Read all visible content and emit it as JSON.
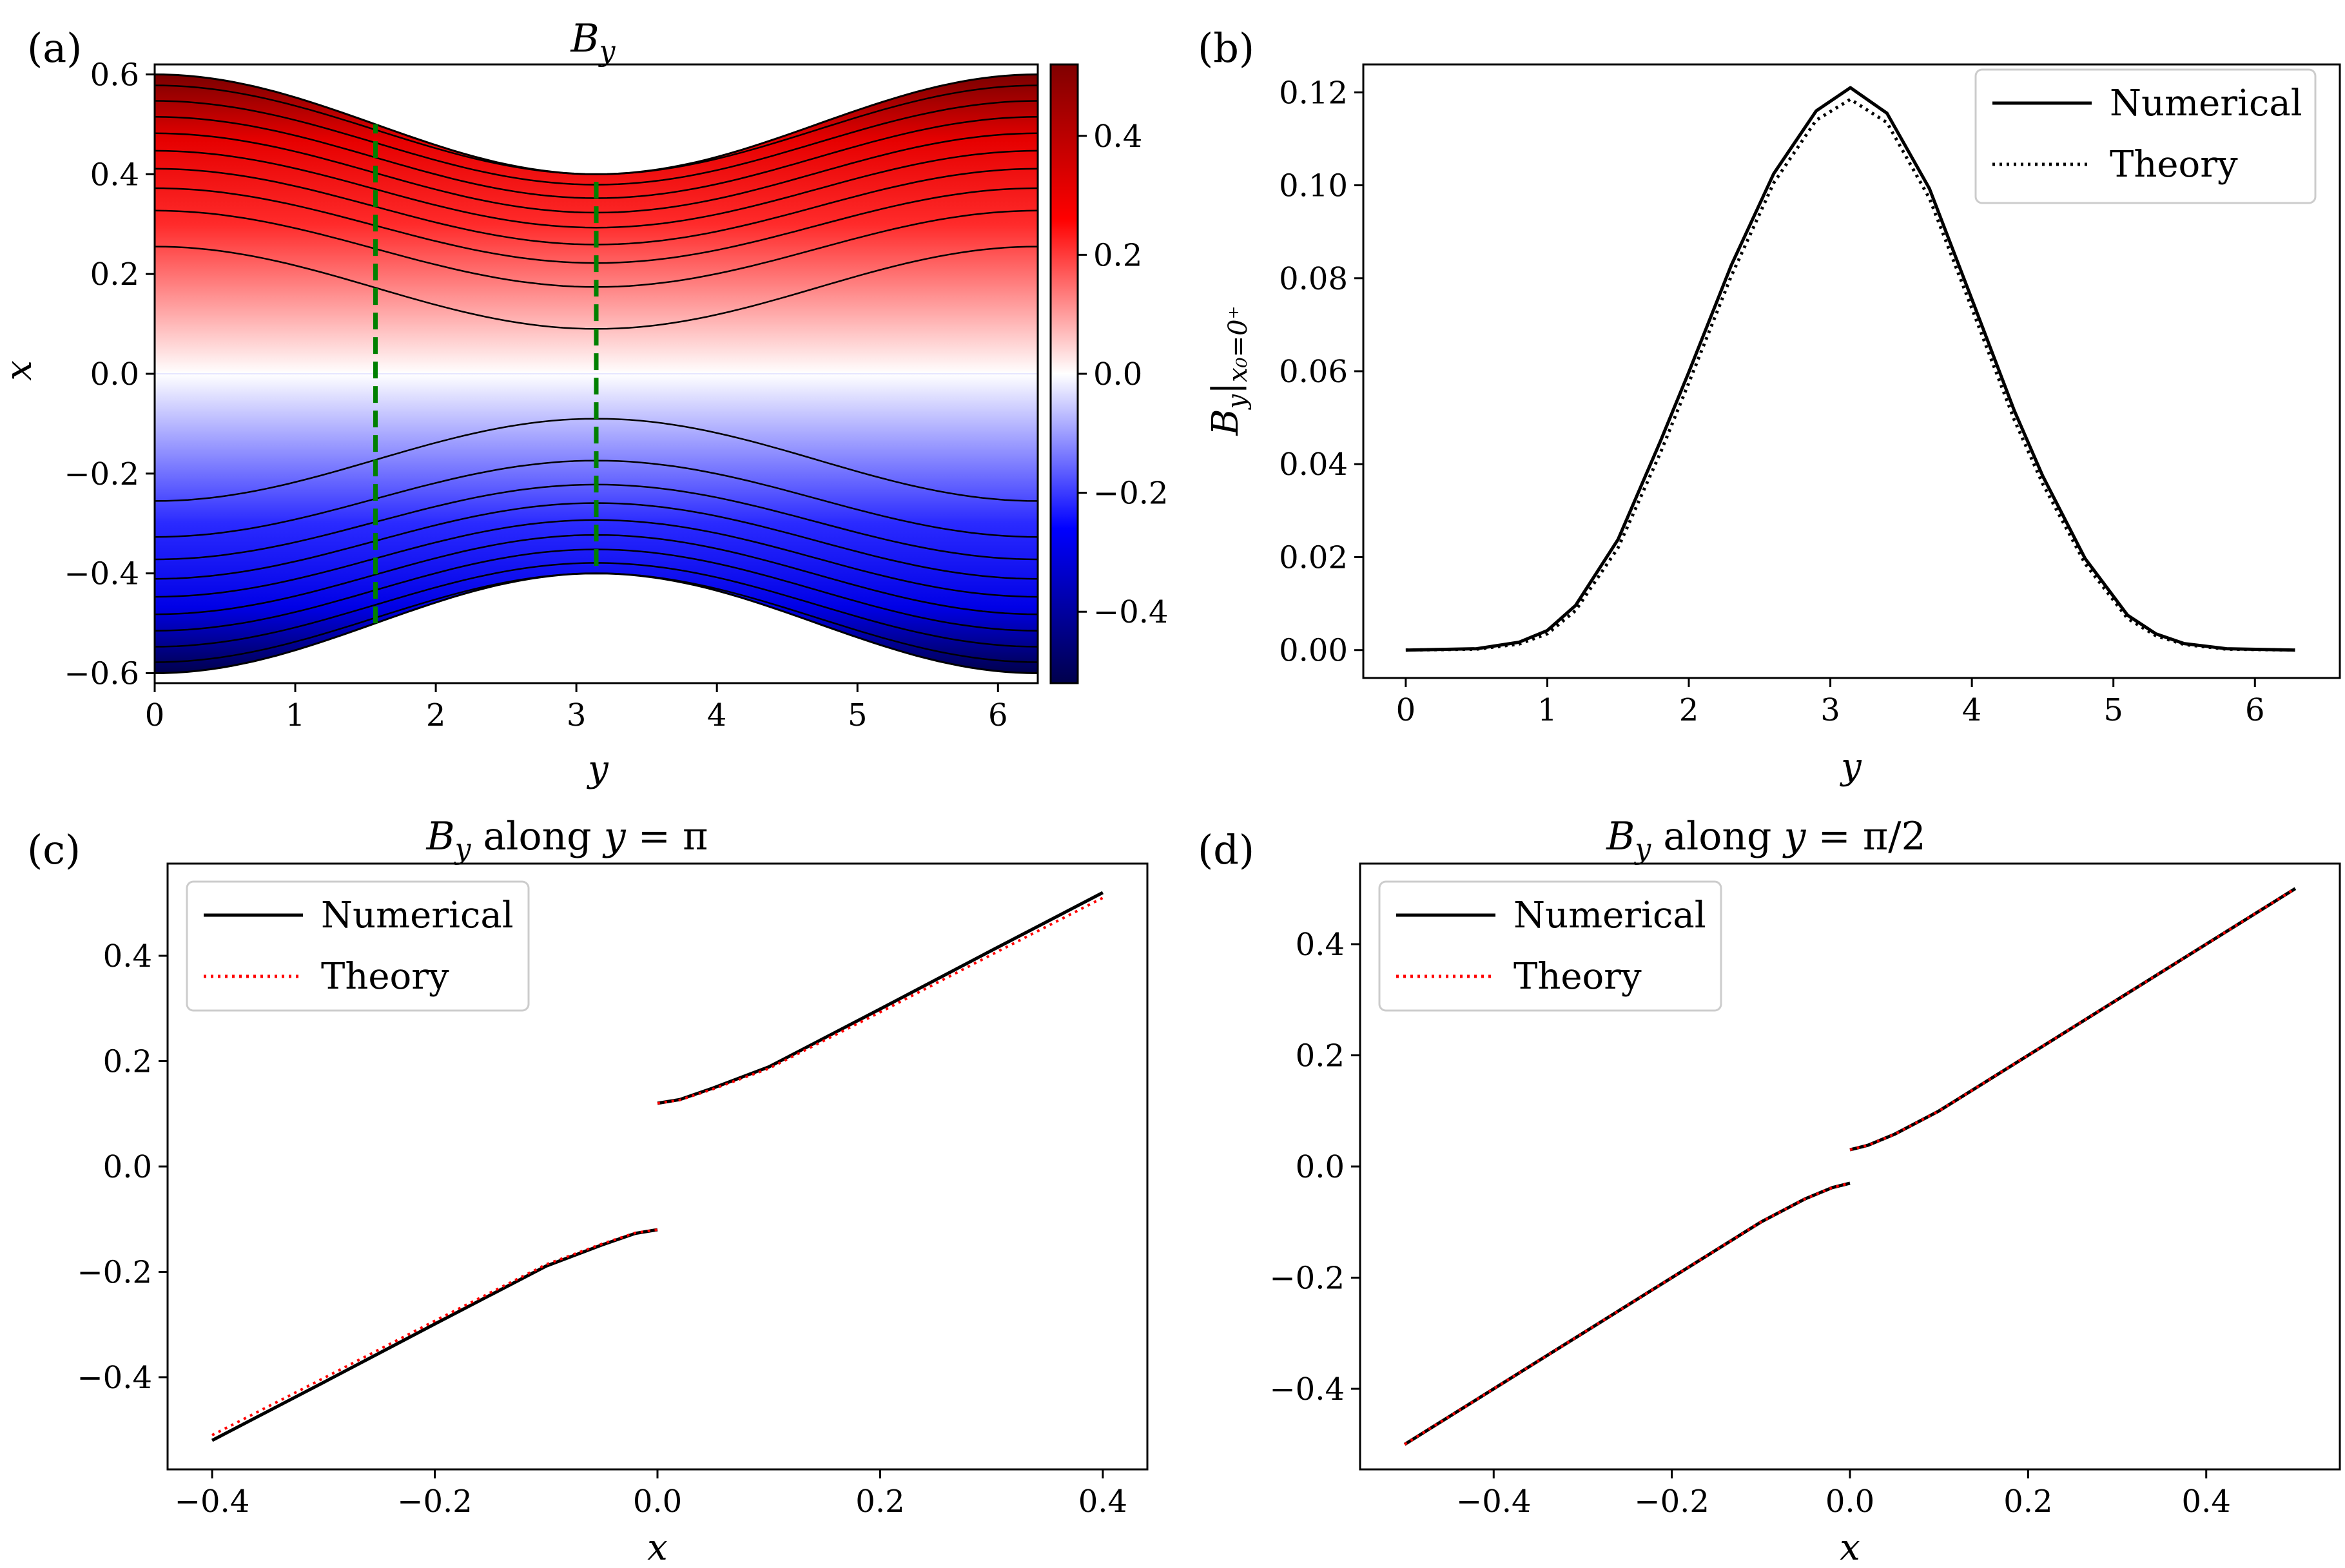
{
  "figure": {
    "panel_labels": [
      "(a)",
      "(b)",
      "(c)",
      "(d)"
    ]
  },
  "chart_data": [
    {
      "id": "a",
      "type": "heatmap",
      "title": "B_y",
      "xlabel": "y",
      "ylabel": "x",
      "xlim": [
        0,
        6.283
      ],
      "ylim": [
        -0.62,
        0.62
      ],
      "xticks": [
        0,
        1,
        2,
        3,
        4,
        5,
        6
      ],
      "xtick_labels": [
        "0",
        "1",
        "2",
        "3",
        "4",
        "5",
        "6"
      ],
      "yticks": [
        0.6,
        0.4,
        0.2,
        0.0,
        -0.2,
        -0.4,
        -0.6
      ],
      "ytick_labels": [
        "0.6",
        "0.4",
        "0.2",
        "0.0",
        "−0.2",
        "−0.4",
        "−0.6"
      ],
      "boundary": {
        "mean": 0.5,
        "amplitude": 0.1,
        "form": "x = ±(0.5 + 0.1 cos y)"
      },
      "contours_upper_x_at_y0": [
        0.255,
        0.327,
        0.372,
        0.411,
        0.447,
        0.482,
        0.515,
        0.547,
        0.578
      ],
      "contours_upper_x_at_ypi": [
        0.09,
        0.174,
        0.222,
        0.259,
        0.293,
        0.323,
        0.352,
        0.379,
        0.4
      ],
      "vertical_markers": {
        "color": "#008000",
        "lines": [
          {
            "y": 1.5708,
            "x_range": [
              -0.5,
              0.5
            ]
          },
          {
            "y": 3.1416,
            "x_range": [
              -0.385,
              0.4
            ]
          }
        ]
      },
      "colorbar": {
        "range": [
          -0.52,
          0.52
        ],
        "ticks": [
          0.4,
          0.2,
          0.0,
          -0.2,
          -0.4
        ],
        "tick_labels": [
          "0.4",
          "0.2",
          "0.0",
          "−0.2",
          "−0.4"
        ],
        "colormap": "seismic",
        "colors": [
          "#00004c",
          "#0000ff",
          "#ffffff",
          "#ff0000",
          "#800000"
        ]
      }
    },
    {
      "id": "b",
      "type": "line",
      "xlabel": "y",
      "ylabel": "B_y|_{x0=0+}",
      "xlim": [
        -0.3,
        6.6
      ],
      "ylim": [
        -0.006,
        0.126
      ],
      "xticks": [
        0,
        1,
        2,
        3,
        4,
        5,
        6
      ],
      "xtick_labels": [
        "0",
        "1",
        "2",
        "3",
        "4",
        "5",
        "6"
      ],
      "yticks": [
        0.0,
        0.02,
        0.04,
        0.06,
        0.08,
        0.1,
        0.12
      ],
      "ytick_labels": [
        "0.00",
        "0.02",
        "0.04",
        "0.06",
        "0.08",
        "0.10",
        "0.12"
      ],
      "x": [
        0,
        0.5,
        0.8,
        1.0,
        1.2,
        1.5,
        1.8,
        2.0,
        2.3,
        2.6,
        2.9,
        3.1416,
        3.4,
        3.7,
        4.0,
        4.3,
        4.5,
        4.8,
        5.1,
        5.3,
        5.5,
        5.8,
        6.283
      ],
      "series": [
        {
          "name": "Numerical",
          "color": "#000000",
          "dash": "solid",
          "values": [
            0.0,
            0.0003,
            0.0017,
            0.0042,
            0.0096,
            0.0238,
            0.045,
            0.0598,
            0.0828,
            0.1025,
            0.116,
            0.121,
            0.1155,
            0.0993,
            0.0755,
            0.0515,
            0.0375,
            0.0197,
            0.0075,
            0.0035,
            0.0014,
            0.0003,
            0.0
          ]
        },
        {
          "name": "Theory",
          "color": "#000000",
          "dash": "dotted",
          "values": [
            0.0,
            0.0002,
            0.0013,
            0.0035,
            0.0085,
            0.022,
            0.0425,
            0.0575,
            0.0805,
            0.1005,
            0.114,
            0.1185,
            0.1135,
            0.0972,
            0.0735,
            0.0495,
            0.0358,
            0.0186,
            0.0068,
            0.0031,
            0.0012,
            0.0002,
            0.0
          ]
        }
      ],
      "legend": {
        "position": "top-right",
        "entries": [
          "Numerical",
          "Theory"
        ]
      }
    },
    {
      "id": "c",
      "type": "line",
      "title_parts": [
        "B",
        "y",
        " along ",
        "y",
        " = π"
      ],
      "xlabel": "x",
      "ylabel": "",
      "xlim": [
        -0.44,
        0.44
      ],
      "ylim": [
        -0.575,
        0.575
      ],
      "xticks": [
        -0.4,
        -0.2,
        0.0,
        0.2,
        0.4
      ],
      "xtick_labels": [
        "−0.4",
        "−0.2",
        "0.0",
        "0.2",
        "0.4"
      ],
      "yticks": [
        0.4,
        0.2,
        0.0,
        -0.2,
        -0.4
      ],
      "ytick_labels": [
        "0.4",
        "0.2",
        "0.0",
        "−0.2",
        "−0.4"
      ],
      "series": [
        {
          "name": "Numerical",
          "color": "#000000",
          "dash": "solid",
          "segments": [
            {
              "x": [
                -0.4,
                -0.3,
                -0.2,
                -0.1,
                -0.05,
                -0.02,
                0.0
              ],
              "values": [
                -0.52,
                -0.41,
                -0.299,
                -0.189,
                -0.149,
                -0.127,
                -0.12
              ]
            },
            {
              "x": [
                0.0,
                0.02,
                0.05,
                0.1,
                0.2,
                0.3,
                0.4
              ],
              "values": [
                0.12,
                0.127,
                0.149,
                0.189,
                0.299,
                0.41,
                0.52
              ]
            }
          ]
        },
        {
          "name": "Theory",
          "color": "#ff0000",
          "dash": "dotted",
          "segments": [
            {
              "x": [
                -0.4,
                -0.3,
                -0.2,
                -0.1,
                -0.05,
                -0.02,
                0.0
              ],
              "values": [
                -0.51,
                -0.402,
                -0.293,
                -0.186,
                -0.147,
                -0.126,
                -0.12
              ]
            },
            {
              "x": [
                0.0,
                0.02,
                0.05,
                0.1,
                0.2,
                0.3,
                0.4
              ],
              "values": [
                0.12,
                0.126,
                0.147,
                0.186,
                0.293,
                0.402,
                0.51
              ]
            }
          ]
        }
      ],
      "legend": {
        "position": "top-left",
        "entries": [
          "Numerical",
          "Theory"
        ]
      }
    },
    {
      "id": "d",
      "type": "line",
      "title_parts": [
        "B",
        "y",
        " along ",
        "y",
        " = π/2"
      ],
      "xlabel": "x",
      "ylabel": "",
      "xlim": [
        -0.55,
        0.55
      ],
      "ylim": [
        -0.545,
        0.545
      ],
      "xticks": [
        -0.4,
        -0.2,
        0.0,
        0.2,
        0.4
      ],
      "xtick_labels": [
        "−0.4",
        "−0.2",
        "0.0",
        "0.2",
        "0.4"
      ],
      "yticks": [
        0.4,
        0.2,
        0.0,
        -0.2,
        -0.4
      ],
      "ytick_labels": [
        "0.4",
        "0.2",
        "0.0",
        "−0.2",
        "−0.4"
      ],
      "series": [
        {
          "name": "Numerical",
          "color": "#000000",
          "dash": "solid",
          "segments": [
            {
              "x": [
                -0.5,
                -0.4,
                -0.3,
                -0.2,
                -0.1,
                -0.05,
                -0.02,
                0.0
              ],
              "values": [
                -0.5,
                -0.4,
                -0.3,
                -0.2,
                -0.1,
                -0.058,
                -0.038,
                -0.03
              ]
            },
            {
              "x": [
                0.0,
                0.02,
                0.05,
                0.1,
                0.2,
                0.3,
                0.4,
                0.5
              ],
              "values": [
                0.03,
                0.038,
                0.058,
                0.1,
                0.2,
                0.3,
                0.4,
                0.5
              ]
            }
          ]
        },
        {
          "name": "Theory",
          "color": "#ff0000",
          "dash": "dotted",
          "segments": [
            {
              "x": [
                -0.5,
                -0.4,
                -0.3,
                -0.2,
                -0.1,
                -0.05,
                -0.02,
                0.0
              ],
              "values": [
                -0.5,
                -0.4,
                -0.3,
                -0.2,
                -0.1,
                -0.058,
                -0.038,
                -0.03
              ]
            },
            {
              "x": [
                0.0,
                0.02,
                0.05,
                0.1,
                0.2,
                0.3,
                0.4,
                0.5
              ],
              "values": [
                0.03,
                0.038,
                0.058,
                0.1,
                0.2,
                0.3,
                0.4,
                0.5
              ]
            }
          ]
        }
      ],
      "legend": {
        "position": "top-left",
        "entries": [
          "Numerical",
          "Theory"
        ]
      }
    }
  ]
}
